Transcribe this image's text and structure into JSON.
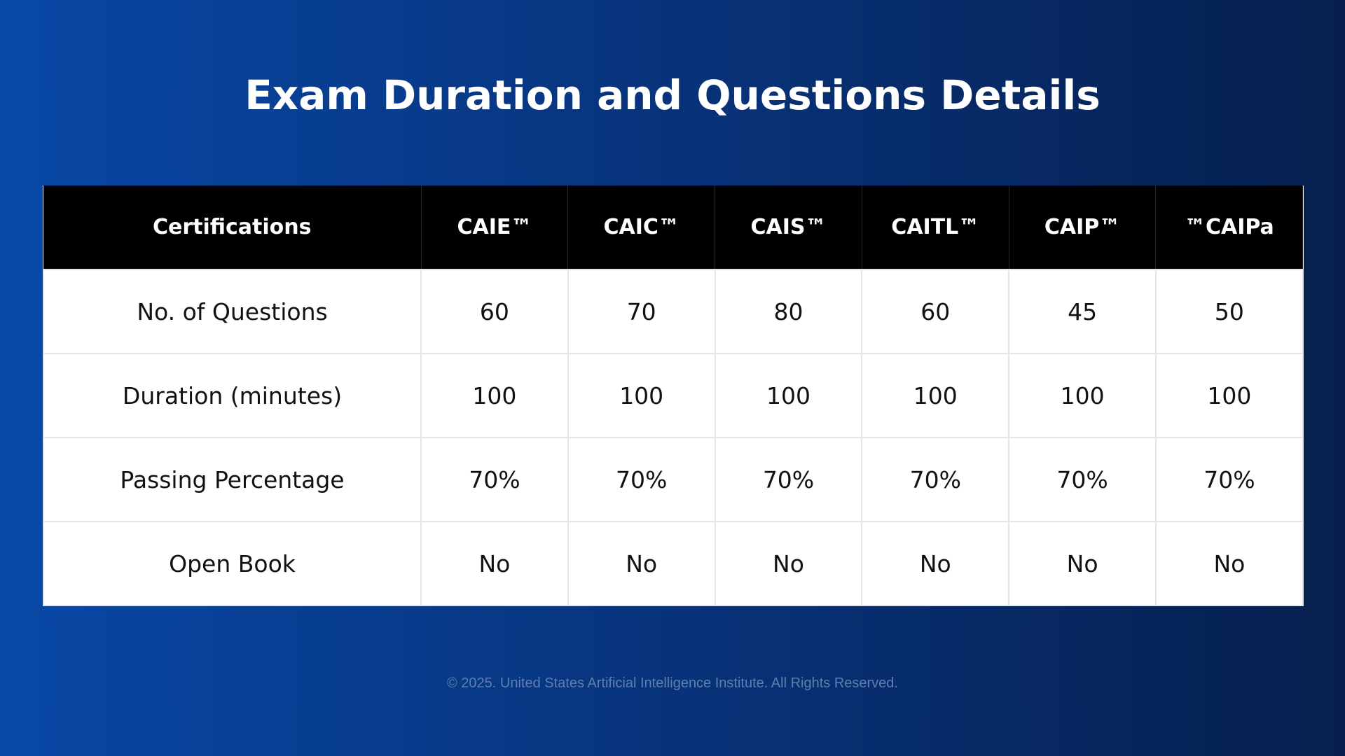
{
  "title": "Exam Duration and Questions Details",
  "table": {
    "headers": [
      "Certifications",
      "CAIE™",
      "CAIC™",
      "CAIS™",
      "CAITL™",
      "CAIP™",
      "™CAIPa"
    ],
    "rows": [
      [
        "No. of Questions",
        "60",
        "70",
        "80",
        "60",
        "45",
        "50"
      ],
      [
        "Duration (minutes)",
        "100",
        "100",
        "100",
        "100",
        "100",
        "100"
      ],
      [
        "Passing Percentage",
        "70%",
        "70%",
        "70%",
        "70%",
        "70%",
        "70%"
      ],
      [
        "Open Book",
        "No",
        "No",
        "No",
        "No",
        "No",
        "No"
      ]
    ]
  },
  "footer": "© 2025. United States Artificial Intelligence Institute. All Rights Reserved.",
  "colors": {
    "background_start": "#0848a6",
    "background_end": "#061f4e",
    "header_bg": "#000000",
    "header_text": "#ffffff",
    "cell_bg": "#ffffff"
  }
}
